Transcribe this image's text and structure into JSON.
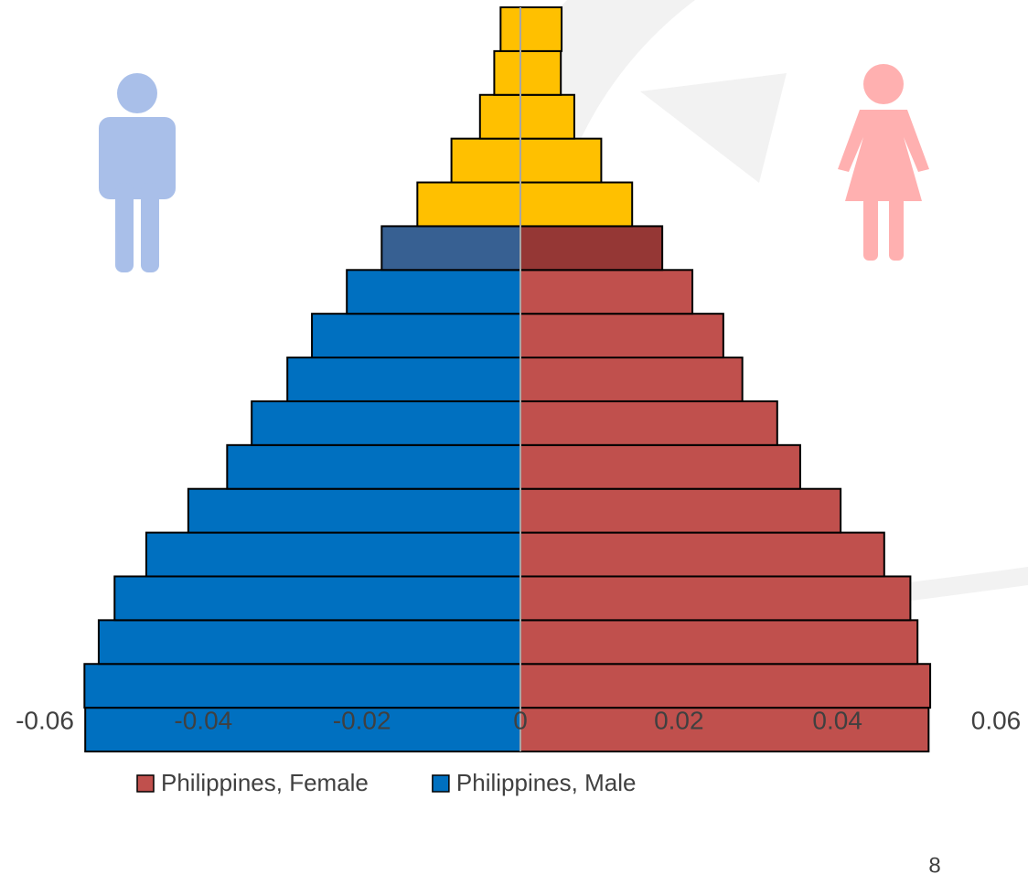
{
  "chart_data": {
    "type": "bar",
    "orientation": "horizontal",
    "stacked": "diverging",
    "categories": [
      null,
      null,
      null,
      null,
      null,
      null,
      null,
      null,
      null,
      null,
      null,
      null,
      null,
      null,
      null,
      null,
      null
    ],
    "series": [
      {
        "name": "Philippines, Female",
        "color": "#C0504D",
        "colors": [
          "#C0504D",
          "#C0504D",
          "#C0504D",
          "#C0504D",
          "#C0504D",
          "#C0504D",
          "#C0504D",
          "#C0504D",
          "#C0504D",
          "#C0504D",
          "#C0504D",
          "#953735",
          "#FFC000",
          "#FFC000",
          "#FFC000",
          "#FFC000",
          "#FFC000"
        ],
        "values": [
          0.0515,
          0.0517,
          0.0501,
          0.0492,
          0.0459,
          0.0404,
          0.0353,
          0.0324,
          0.028,
          0.0256,
          0.0217,
          0.0179,
          0.0141,
          0.0102,
          0.0068,
          0.0051,
          0.0052
        ]
      },
      {
        "name": "Philippines, Male",
        "color": "#0070C0",
        "colors": [
          "#0070C0",
          "#0070C0",
          "#0070C0",
          "#0070C0",
          "#0070C0",
          "#0070C0",
          "#0070C0",
          "#0070C0",
          "#0070C0",
          "#0070C0",
          "#0070C0",
          "#376092",
          "#FFC000",
          "#FFC000",
          "#FFC000",
          "#FFC000",
          "#FFC000"
        ],
        "values": [
          -0.0549,
          -0.055,
          -0.0532,
          -0.0512,
          -0.0472,
          -0.0419,
          -0.037,
          -0.0339,
          -0.0294,
          -0.0263,
          -0.0219,
          -0.0175,
          -0.013,
          -0.0087,
          -0.0051,
          -0.0033,
          -0.0025
        ]
      }
    ],
    "xlim": [
      -0.06,
      0.06
    ],
    "xticks": [
      -0.06,
      -0.04,
      -0.02,
      0,
      0.02,
      0.04,
      0.06
    ],
    "legend": "bottom",
    "page_number": "8"
  }
}
